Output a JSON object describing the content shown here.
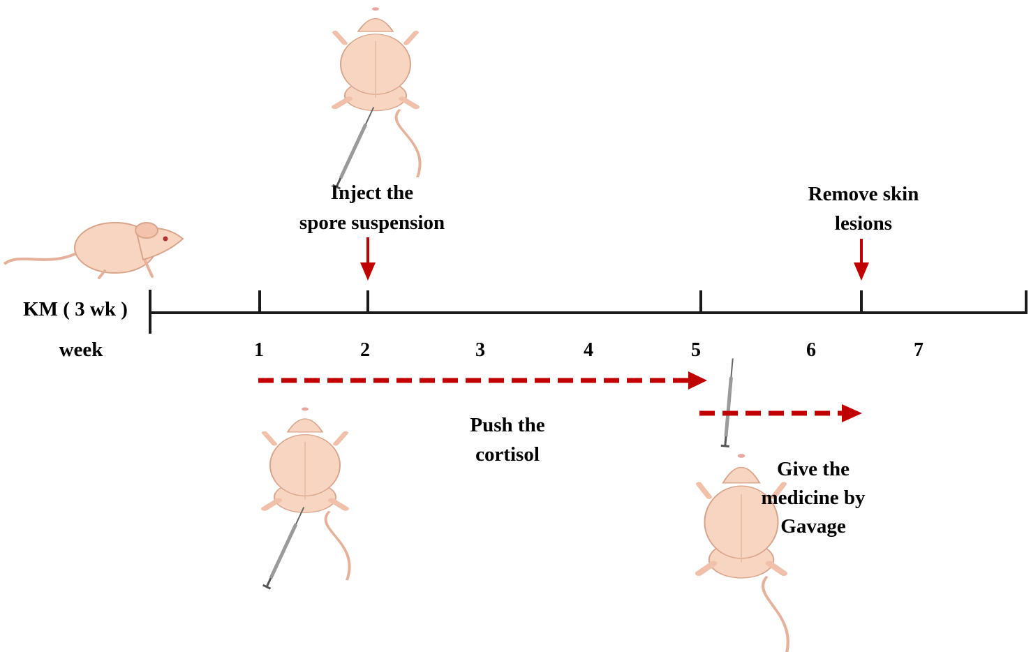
{
  "timeline": {
    "start_label": "KM ( 3 wk )",
    "unit_label": "week",
    "ticks": [
      "1",
      "2",
      "3",
      "4",
      "5",
      "6",
      "7"
    ]
  },
  "events": {
    "inject": [
      "Inject the",
      "spore suspension"
    ],
    "remove": [
      "Remove skin",
      "lesions"
    ],
    "push": [
      "Push the",
      "cortisol"
    ],
    "gavage": [
      "Give the",
      "medicine by",
      "Gavage"
    ]
  },
  "icons": [
    "mouse-side-icon",
    "mouse-injection-icon",
    "mouse-gavage-icon"
  ],
  "colors": {
    "accent": "#c00000",
    "axis": "#1a1a1a",
    "mouse_body": "#f7d5c0",
    "mouse_outline": "#d9a48a"
  }
}
